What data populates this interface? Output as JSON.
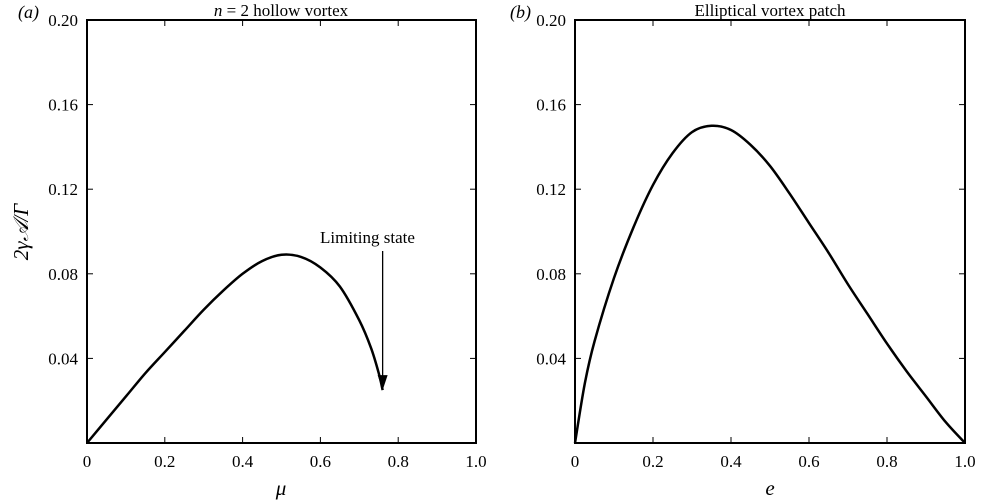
{
  "chart_data": [
    {
      "type": "line",
      "panel_label": "(a)",
      "title_var": "n",
      "title_rest": " = 2 hollow vortex",
      "xlabel": "μ",
      "ylabel": "2γ𝒜/Γ",
      "xlim": [
        0,
        1.0
      ],
      "ylim": [
        0,
        0.2
      ],
      "x_ticks": [
        "0",
        "0.2",
        "0.4",
        "0.6",
        "0.8",
        "1.0"
      ],
      "y_ticks": [
        "0.04",
        "0.08",
        "0.12",
        "0.16",
        "0.20"
      ],
      "grid": false,
      "series": [
        {
          "x": [
            0,
            0.05,
            0.1,
            0.15,
            0.2,
            0.25,
            0.3,
            0.35,
            0.4,
            0.45,
            0.5,
            0.55,
            0.6,
            0.65,
            0.7,
            0.73,
            0.75,
            0.76
          ],
          "y": [
            0,
            0.011,
            0.022,
            0.033,
            0.043,
            0.053,
            0.063,
            0.072,
            0.08,
            0.086,
            0.089,
            0.088,
            0.083,
            0.074,
            0.058,
            0.045,
            0.033,
            0.025
          ]
        }
      ],
      "annotation": {
        "text": "Limiting state",
        "x": 0.76,
        "y": 0.025
      }
    },
    {
      "type": "line",
      "panel_label": "(b)",
      "title": "Elliptical vortex patch",
      "xlabel": "e",
      "ylabel": "",
      "xlim": [
        0,
        1.0
      ],
      "ylim": [
        0,
        0.2
      ],
      "x_ticks": [
        "0",
        "0.2",
        "0.4",
        "0.6",
        "0.8",
        "1.0"
      ],
      "y_ticks": [
        "0.04",
        "0.08",
        "0.12",
        "0.16",
        "0.20"
      ],
      "grid": false,
      "series": [
        {
          "x": [
            0,
            0.025,
            0.05,
            0.1,
            0.15,
            0.2,
            0.25,
            0.3,
            0.35,
            0.4,
            0.45,
            0.5,
            0.55,
            0.6,
            0.65,
            0.7,
            0.75,
            0.8,
            0.85,
            0.9,
            0.95,
            1.0
          ],
          "y": [
            0,
            0.028,
            0.048,
            0.078,
            0.102,
            0.122,
            0.137,
            0.147,
            0.15,
            0.148,
            0.141,
            0.131,
            0.118,
            0.104,
            0.09,
            0.075,
            0.061,
            0.047,
            0.034,
            0.022,
            0.01,
            0
          ]
        }
      ]
    }
  ]
}
